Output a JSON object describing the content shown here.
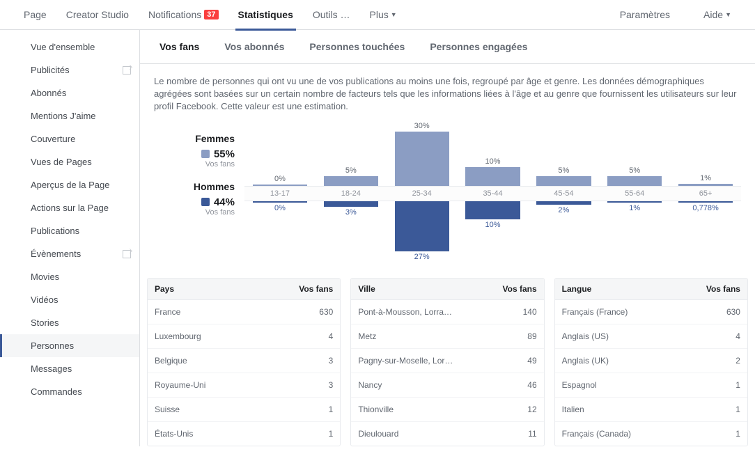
{
  "topnav": {
    "left": [
      {
        "label": "Page"
      },
      {
        "label": "Creator Studio"
      },
      {
        "label": "Notifications",
        "badge": "37"
      },
      {
        "label": "Statistiques",
        "active": true
      },
      {
        "label": "Outils …"
      },
      {
        "label": "Plus",
        "dropdown": true
      }
    ],
    "right": [
      {
        "label": "Paramètres"
      },
      {
        "label": "Aide",
        "dropdown": true
      }
    ]
  },
  "sidebar": [
    {
      "label": "Vue d'ensemble"
    },
    {
      "label": "Publicités",
      "icon": true
    },
    {
      "label": "Abonnés"
    },
    {
      "label": "Mentions J'aime"
    },
    {
      "label": "Couverture"
    },
    {
      "label": "Vues de Pages"
    },
    {
      "label": "Aperçus de la Page"
    },
    {
      "label": "Actions sur la Page"
    },
    {
      "label": "Publications"
    },
    {
      "label": "Évènements",
      "icon": true
    },
    {
      "label": "Movies"
    },
    {
      "label": "Vidéos"
    },
    {
      "label": "Stories"
    },
    {
      "label": "Personnes",
      "active": true
    },
    {
      "label": "Messages"
    },
    {
      "label": "Commandes"
    }
  ],
  "tabs": [
    {
      "label": "Vos fans",
      "active": true
    },
    {
      "label": "Vos abonnés"
    },
    {
      "label": "Personnes touchées"
    },
    {
      "label": "Personnes engagées"
    }
  ],
  "description": "Le nombre de personnes qui ont vu une de vos publications au moins une fois, regroupé par âge et genre. Les données démographiques agrégées sont basées sur un certain nombre de facteurs tels que les informations liées à l'âge et au genre que fournissent les utilisateurs sur leur profil Facebook. Cette valeur est une estimation.",
  "chart": {
    "colors": {
      "female": "#8b9dc3",
      "male": "#3b5998",
      "label": "#616770"
    },
    "max_pct": 30,
    "female": {
      "title": "Femmes",
      "pct": "55%",
      "sub": "Vos fans"
    },
    "male": {
      "title": "Hommes",
      "pct": "44%",
      "sub": "Vos fans"
    },
    "age_buckets": [
      "13-17",
      "18-24",
      "25-34",
      "35-44",
      "45-54",
      "55-64",
      "65+"
    ],
    "female_vals": [
      0,
      5,
      30,
      10,
      5,
      5,
      1
    ],
    "female_labels": [
      "0%",
      "5%",
      "30%",
      "10%",
      "5%",
      "5%",
      "1%"
    ],
    "male_vals": [
      0,
      3,
      27,
      10,
      2,
      1,
      0.778
    ],
    "male_labels": [
      "0%",
      "3%",
      "27%",
      "10%",
      "2%",
      "1%",
      "0,778%"
    ]
  },
  "tables": {
    "country": {
      "cols": [
        "Pays",
        "Vos fans"
      ],
      "rows": [
        [
          "France",
          "630"
        ],
        [
          "Luxembourg",
          "4"
        ],
        [
          "Belgique",
          "3"
        ],
        [
          "Royaume-Uni",
          "3"
        ],
        [
          "Suisse",
          "1"
        ],
        [
          "États-Unis",
          "1"
        ]
      ]
    },
    "city": {
      "cols": [
        "Ville",
        "Vos fans"
      ],
      "rows": [
        [
          "Pont-à-Mousson, Lorra…",
          "140"
        ],
        [
          "Metz",
          "89"
        ],
        [
          "Pagny-sur-Moselle, Lor…",
          "49"
        ],
        [
          "Nancy",
          "46"
        ],
        [
          "Thionville",
          "12"
        ],
        [
          "Dieulouard",
          "11"
        ]
      ]
    },
    "lang": {
      "cols": [
        "Langue",
        "Vos fans"
      ],
      "rows": [
        [
          "Français (France)",
          "630"
        ],
        [
          "Anglais (US)",
          "4"
        ],
        [
          "Anglais (UK)",
          "2"
        ],
        [
          "Espagnol",
          "1"
        ],
        [
          "Italien",
          "1"
        ],
        [
          "Français (Canada)",
          "1"
        ]
      ]
    }
  }
}
